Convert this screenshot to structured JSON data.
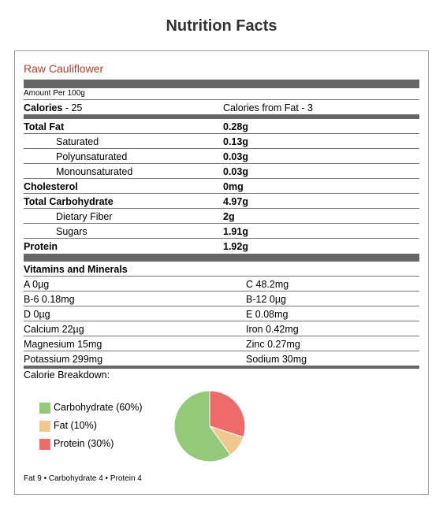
{
  "title": "Nutrition Facts",
  "food": "Raw Cauliflower",
  "amount_per": "Amount Per 100g",
  "calories": {
    "label": "Calories",
    "value": "25",
    "from_fat_label": "Calories from Fat",
    "from_fat_value": "3"
  },
  "nutrients": [
    {
      "label": "Total Fat",
      "value": "0.28g",
      "bold": true,
      "indent": false
    },
    {
      "label": "Saturated",
      "value": "0.13g",
      "bold": false,
      "indent": true
    },
    {
      "label": "Polyunsaturated",
      "value": "0.03g",
      "bold": false,
      "indent": true
    },
    {
      "label": "Monounsaturated",
      "value": "0.03g",
      "bold": false,
      "indent": true
    },
    {
      "label": "Cholesterol",
      "value": "0mg",
      "bold": true,
      "indent": false
    },
    {
      "label": "Total Carbohydrate",
      "value": "4.97g",
      "bold": true,
      "indent": false
    },
    {
      "label": "Dietary Fiber",
      "value": "2g",
      "bold": false,
      "indent": true
    },
    {
      "label": "Sugars",
      "value": "1.91g",
      "bold": false,
      "indent": true
    },
    {
      "label": "Protein",
      "value": "1.92g",
      "bold": true,
      "indent": false
    }
  ],
  "vitamins_header": "Vitamins and Minerals",
  "vitamins": [
    {
      "left": "A 0µg",
      "right": "C 48.2mg"
    },
    {
      "left": "B-6 0.18mg",
      "right": "B-12 0µg"
    },
    {
      "left": "D 0µg",
      "right": "E 0.08mg"
    },
    {
      "left": "Calcium 22µg",
      "right": "Iron 0.42mg"
    },
    {
      "left": "Magnesium 15mg",
      "right": "Zinc 0.27mg"
    },
    {
      "left": "Potassium 299mg",
      "right": "Sodium 30mg"
    }
  ],
  "breakdown_label": "Calorie Breakdown:",
  "chart_data": {
    "type": "pie",
    "slices": [
      {
        "label": "Carbohydrate (60%)",
        "value": 60,
        "color": "#95c97a"
      },
      {
        "label": "Fat (10%)",
        "value": 10,
        "color": "#f0c78e"
      },
      {
        "label": "Protein (30%)",
        "value": 30,
        "color": "#ee6b6b"
      }
    ]
  },
  "footer": "Fat 9 • Carbohydrate 4 • Protein 4"
}
